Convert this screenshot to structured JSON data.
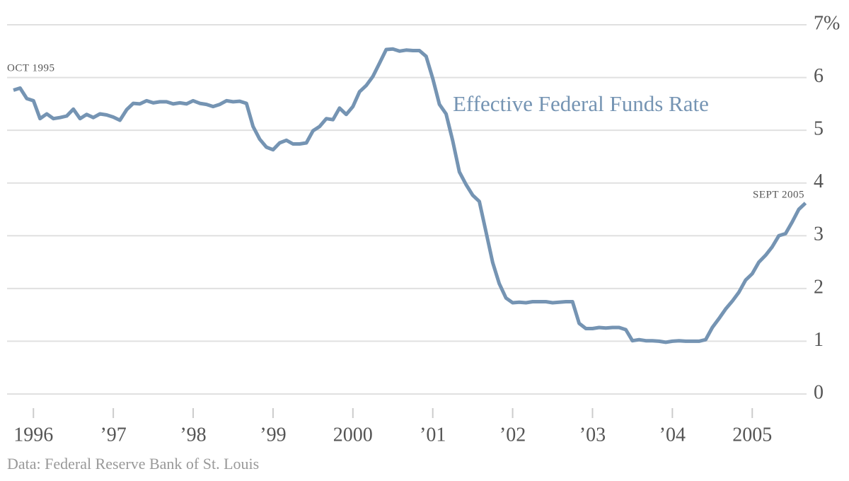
{
  "chart_data": {
    "type": "line",
    "source": "Data: Federal Reserve Bank of St. Louis",
    "annotations": [
      "OCT 1995",
      "SEPT 2005"
    ],
    "x": [
      1995.75,
      1995.833,
      1995.917,
      1996,
      1996.083,
      1996.167,
      1996.25,
      1996.333,
      1996.417,
      1996.5,
      1996.583,
      1996.667,
      1996.75,
      1996.833,
      1996.917,
      1997,
      1997.083,
      1997.167,
      1997.25,
      1997.333,
      1997.417,
      1997.5,
      1997.583,
      1997.667,
      1997.75,
      1997.833,
      1997.917,
      1998,
      1998.083,
      1998.167,
      1998.25,
      1998.333,
      1998.417,
      1998.5,
      1998.583,
      1998.667,
      1998.75,
      1998.833,
      1998.917,
      1999,
      1999.083,
      1999.167,
      1999.25,
      1999.333,
      1999.417,
      1999.5,
      1999.583,
      1999.667,
      1999.75,
      1999.833,
      1999.917,
      2000,
      2000.083,
      2000.167,
      2000.25,
      2000.333,
      2000.417,
      2000.5,
      2000.583,
      2000.667,
      2000.75,
      2000.833,
      2000.917,
      2001,
      2001.083,
      2001.167,
      2001.25,
      2001.333,
      2001.417,
      2001.5,
      2001.583,
      2001.667,
      2001.75,
      2001.833,
      2001.917,
      2002,
      2002.083,
      2002.167,
      2002.25,
      2002.333,
      2002.417,
      2002.5,
      2002.583,
      2002.667,
      2002.75,
      2002.833,
      2002.917,
      2003,
      2003.083,
      2003.167,
      2003.25,
      2003.333,
      2003.417,
      2003.5,
      2003.583,
      2003.667,
      2003.75,
      2003.833,
      2003.917,
      2004,
      2004.083,
      2004.167,
      2004.25,
      2004.333,
      2004.417,
      2004.5,
      2004.583,
      2004.667,
      2004.75,
      2004.833,
      2004.917,
      2005,
      2005.083,
      2005.167,
      2005.25,
      2005.333,
      2005.417,
      2005.5,
      2005.583,
      2005.667
    ],
    "series": [
      {
        "name": "Effective Federal Funds Rate",
        "color": "#7594b3",
        "values": [
          5.76,
          5.8,
          5.6,
          5.56,
          5.22,
          5.31,
          5.22,
          5.24,
          5.27,
          5.4,
          5.22,
          5.3,
          5.24,
          5.31,
          5.29,
          5.25,
          5.19,
          5.39,
          5.51,
          5.5,
          5.56,
          5.52,
          5.54,
          5.54,
          5.5,
          5.52,
          5.5,
          5.56,
          5.51,
          5.49,
          5.45,
          5.49,
          5.56,
          5.54,
          5.55,
          5.51,
          5.07,
          4.83,
          4.68,
          4.63,
          4.76,
          4.81,
          4.74,
          4.74,
          4.76,
          4.99,
          5.07,
          5.22,
          5.2,
          5.42,
          5.3,
          5.45,
          5.73,
          5.85,
          6.02,
          6.27,
          6.53,
          6.54,
          6.5,
          6.52,
          6.51,
          6.51,
          6.4,
          5.98,
          5.49,
          5.31,
          4.8,
          4.21,
          3.97,
          3.77,
          3.65,
          3.07,
          2.49,
          2.09,
          1.82,
          1.73,
          1.74,
          1.73,
          1.75,
          1.75,
          1.75,
          1.73,
          1.74,
          1.75,
          1.75,
          1.34,
          1.24,
          1.24,
          1.26,
          1.25,
          1.26,
          1.26,
          1.22,
          1.01,
          1.03,
          1.01,
          1.01,
          1.0,
          0.98,
          1.0,
          1.01,
          1.0,
          1.0,
          1.0,
          1.03,
          1.26,
          1.43,
          1.61,
          1.76,
          1.93,
          2.16,
          2.28,
          2.5,
          2.63,
          2.79,
          3.0,
          3.04,
          3.26,
          3.5,
          3.62
        ]
      }
    ],
    "xlim": [
      1995.67,
      2005.68
    ],
    "xticks": [
      1996,
      {
        "value": 1997,
        "label": "’97"
      },
      {
        "value": 1998,
        "label": "’98"
      },
      {
        "value": 1999,
        "label": "’99"
      },
      2000,
      {
        "value": 2001,
        "label": "’01"
      },
      {
        "value": 2002,
        "label": "’02"
      },
      {
        "value": 2003,
        "label": "’03"
      },
      {
        "value": 2004,
        "label": "’04"
      },
      2005
    ],
    "ylim": [
      0,
      7
    ],
    "yticks": [
      0,
      1,
      2,
      3,
      4,
      5,
      6,
      {
        "value": 7,
        "label": "7%"
      }
    ],
    "grid": true
  }
}
